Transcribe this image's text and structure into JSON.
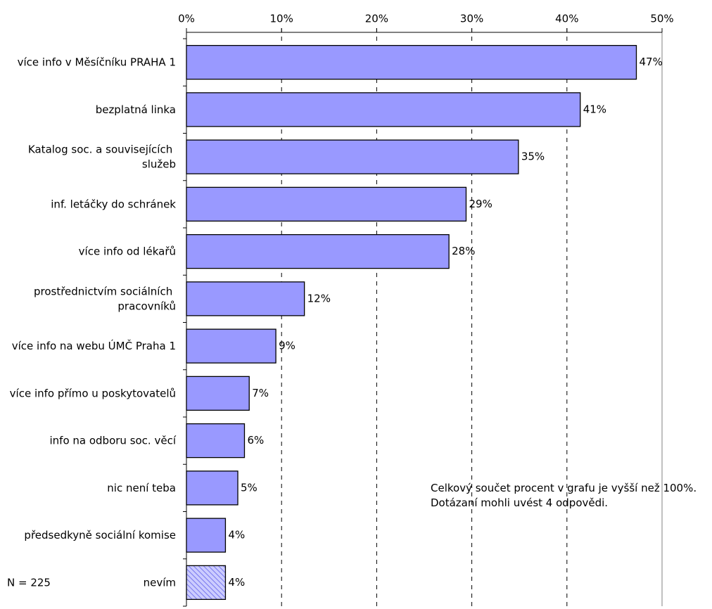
{
  "chart_data": {
    "type": "barh",
    "categories": [
      "více info v Měsíčníku PRAHA 1",
      "bezplatná linka",
      "Katalog soc. a souvisejících služeb",
      "inf. letáčky do schránek",
      "více info od lékařů",
      "prostřednictvím sociálních pracovníků",
      "více info na webu ÚMČ Praha 1",
      "více info přímo u poskytovatelů",
      "info na odboru soc. věcí",
      "nic není teba",
      "předsedkyně sociální komise",
      "nevím"
    ],
    "values": [
      47.3,
      41.4,
      34.9,
      29.4,
      27.6,
      12.4,
      9.4,
      6.6,
      6.1,
      5.4,
      4.1,
      4.1
    ],
    "value_labels": [
      "47%",
      "41%",
      "35%",
      "29%",
      "28%",
      "12%",
      "9%",
      "7%",
      "6%",
      "5%",
      "4%",
      "4%"
    ],
    "hatch": [
      false,
      false,
      false,
      false,
      false,
      false,
      false,
      false,
      false,
      false,
      false,
      true
    ],
    "color": "#9999ff",
    "xlim": [
      0,
      50
    ],
    "xticks": [
      {
        "value": 0,
        "label": "0%"
      },
      {
        "value": 10,
        "label": "10%"
      },
      {
        "value": 20,
        "label": "20%"
      },
      {
        "value": 30,
        "label": "30%"
      },
      {
        "value": 40,
        "label": "40%"
      },
      {
        "value": 50,
        "label": "50%"
      }
    ],
    "grid": true,
    "annotation": "Celkový součet procent v grafu je vyšší než 100%. Dotázaní mohli uvést 4 odpovědi.",
    "note": "N = 225"
  }
}
